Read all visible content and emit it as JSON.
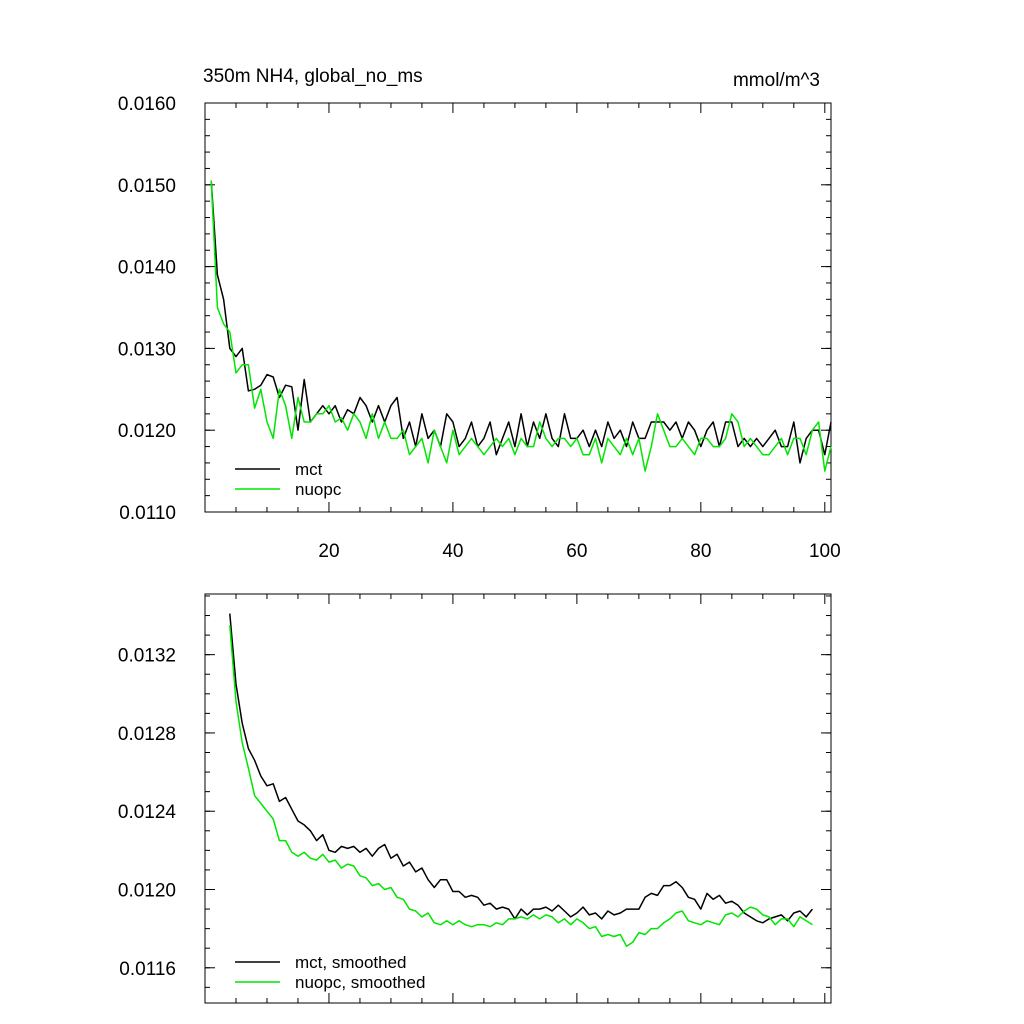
{
  "colors": {
    "mct": "#000000",
    "nuopc": "#00e600",
    "axis": "#000000",
    "background": "#ffffff"
  },
  "chart_data": [
    {
      "type": "line",
      "title_left": "350m NH4, global_no_ms",
      "title_right": "mmol/m^3",
      "xlabel": "",
      "ylabel": "",
      "xlim": [
        0,
        101
      ],
      "ylim": [
        0.011,
        0.016
      ],
      "x_ticks": [
        20,
        40,
        60,
        80,
        100
      ],
      "x_tick_labels": [
        "20",
        "40",
        "60",
        "80",
        "100"
      ],
      "y_ticks": [
        0.011,
        0.012,
        0.013,
        0.014,
        0.015,
        0.016
      ],
      "y_tick_labels": [
        "0.0110",
        "0.0120",
        "0.0130",
        "0.0140",
        "0.0150",
        "0.0160"
      ],
      "legend_position": "bottom-left",
      "grid": false,
      "x": [
        1,
        2,
        3,
        4,
        5,
        6,
        7,
        8,
        9,
        10,
        11,
        12,
        13,
        14,
        15,
        16,
        17,
        18,
        19,
        20,
        21,
        22,
        23,
        24,
        25,
        26,
        27,
        28,
        29,
        30,
        31,
        32,
        33,
        34,
        35,
        36,
        37,
        38,
        39,
        40,
        41,
        42,
        43,
        44,
        45,
        46,
        47,
        48,
        49,
        50,
        51,
        52,
        53,
        54,
        55,
        56,
        57,
        58,
        59,
        60,
        61,
        62,
        63,
        64,
        65,
        66,
        67,
        68,
        69,
        70,
        71,
        72,
        73,
        74,
        75,
        76,
        77,
        78,
        79,
        80,
        81,
        82,
        83,
        84,
        85,
        86,
        87,
        88,
        89,
        90,
        91,
        92,
        93,
        94,
        95,
        96,
        97,
        98,
        99,
        100,
        101
      ],
      "series": [
        {
          "name": "mct",
          "color": "#000000",
          "values": [
            0.01505,
            0.0139,
            0.0136,
            0.013,
            0.0129,
            0.013,
            0.01248,
            0.0125,
            0.01255,
            0.01268,
            0.01265,
            0.0124,
            0.01255,
            0.01253,
            0.012,
            0.01262,
            0.0121,
            0.0122,
            0.0123,
            0.0122,
            0.0123,
            0.0121,
            0.01225,
            0.0122,
            0.0124,
            0.0123,
            0.0121,
            0.0123,
            0.0121,
            0.0123,
            0.0124,
            0.0119,
            0.0121,
            0.0118,
            0.0122,
            0.0119,
            0.012,
            0.0118,
            0.0122,
            0.0121,
            0.0118,
            0.0119,
            0.0121,
            0.0118,
            0.0119,
            0.0121,
            0.0117,
            0.0119,
            0.0121,
            0.0118,
            0.0122,
            0.0118,
            0.0121,
            0.0119,
            0.0122,
            0.0119,
            0.0118,
            0.0122,
            0.0119,
            0.0119,
            0.012,
            0.0118,
            0.012,
            0.0118,
            0.0121,
            0.0119,
            0.012,
            0.0118,
            0.0121,
            0.0119,
            0.0119,
            0.0121,
            0.0121,
            0.0121,
            0.012,
            0.0121,
            0.0119,
            0.0121,
            0.012,
            0.0118,
            0.012,
            0.0121,
            0.0118,
            0.0121,
            0.0121,
            0.0118,
            0.0119,
            0.0118,
            0.0119,
            0.0118,
            0.0119,
            0.012,
            0.0118,
            0.0118,
            0.0121,
            0.0116,
            0.0119,
            0.012,
            0.012,
            0.0117,
            0.0121
          ]
        },
        {
          "name": "nuopc",
          "color": "#00e600",
          "values": [
            0.01505,
            0.0135,
            0.0133,
            0.0132,
            0.0127,
            0.0128,
            0.0128,
            0.01227,
            0.0125,
            0.0121,
            0.0119,
            0.0125,
            0.0123,
            0.0119,
            0.0124,
            0.0121,
            0.0121,
            0.0122,
            0.0122,
            0.0123,
            0.0121,
            0.01215,
            0.012,
            0.0122,
            0.0121,
            0.0119,
            0.0122,
            0.0119,
            0.0121,
            0.0119,
            0.0119,
            0.012,
            0.0117,
            0.0118,
            0.0119,
            0.0116,
            0.012,
            0.0118,
            0.0116,
            0.012,
            0.0117,
            0.0118,
            0.0119,
            0.0118,
            0.0117,
            0.0118,
            0.0119,
            0.0118,
            0.0119,
            0.0117,
            0.0119,
            0.0118,
            0.0118,
            0.0121,
            0.0119,
            0.0118,
            0.0119,
            0.0119,
            0.0118,
            0.0119,
            0.0117,
            0.0117,
            0.0119,
            0.0116,
            0.0119,
            0.0118,
            0.0117,
            0.0119,
            0.0117,
            0.0119,
            0.0115,
            0.0118,
            0.0122,
            0.012,
            0.0118,
            0.0118,
            0.0119,
            0.0118,
            0.0117,
            0.0119,
            0.0119,
            0.0118,
            0.0118,
            0.0119,
            0.0122,
            0.0121,
            0.0118,
            0.0119,
            0.0118,
            0.0117,
            0.0117,
            0.0118,
            0.0119,
            0.0117,
            0.0119,
            0.0119,
            0.0117,
            0.012,
            0.0121,
            0.0115,
            0.0118
          ]
        }
      ]
    },
    {
      "type": "line",
      "xlabel": "",
      "ylabel": "",
      "xlim": [
        0,
        101
      ],
      "ylim": [
        0.01142,
        0.01351
      ],
      "x_ticks": [
        20,
        40,
        60,
        80,
        100
      ],
      "y_ticks": [
        0.0116,
        0.012,
        0.0124,
        0.0128,
        0.0132
      ],
      "y_tick_labels": [
        "0.0116",
        "0.0120",
        "0.0124",
        "0.0128",
        "0.0132"
      ],
      "legend_position": "bottom-left",
      "grid": false,
      "x": [
        4,
        5,
        6,
        7,
        8,
        9,
        10,
        11,
        12,
        13,
        14,
        15,
        16,
        17,
        18,
        19,
        20,
        21,
        22,
        23,
        24,
        25,
        26,
        27,
        28,
        29,
        30,
        31,
        32,
        33,
        34,
        35,
        36,
        37,
        38,
        39,
        40,
        41,
        42,
        43,
        44,
        45,
        46,
        47,
        48,
        49,
        50,
        51,
        52,
        53,
        54,
        55,
        56,
        57,
        58,
        59,
        60,
        61,
        62,
        63,
        64,
        65,
        66,
        67,
        68,
        69,
        70,
        71,
        72,
        73,
        74,
        75,
        76,
        77,
        78,
        79,
        80,
        81,
        82,
        83,
        84,
        85,
        86,
        87,
        88,
        89,
        90,
        91,
        92,
        93,
        94,
        95,
        96,
        97,
        98
      ],
      "series": [
        {
          "name": "mct, smoothed",
          "color": "#000000",
          "values": [
            0.01341,
            0.01305,
            0.01285,
            0.01272,
            0.01266,
            0.01258,
            0.01253,
            0.01254,
            0.01245,
            0.01247,
            0.01241,
            0.01235,
            0.01233,
            0.0123,
            0.01225,
            0.01228,
            0.0122,
            0.01219,
            0.01222,
            0.01221,
            0.01222,
            0.01219,
            0.01221,
            0.01217,
            0.01221,
            0.01223,
            0.01216,
            0.01218,
            0.01212,
            0.01214,
            0.01209,
            0.01211,
            0.01205,
            0.01201,
            0.01205,
            0.01205,
            0.01199,
            0.01199,
            0.01196,
            0.01197,
            0.01196,
            0.01192,
            0.01193,
            0.0119,
            0.01191,
            0.0119,
            0.01185,
            0.0119,
            0.01187,
            0.0119,
            0.0119,
            0.01191,
            0.01189,
            0.01192,
            0.01189,
            0.01186,
            0.01188,
            0.01191,
            0.01187,
            0.01188,
            0.01185,
            0.01189,
            0.01187,
            0.01188,
            0.0119,
            0.0119,
            0.0119,
            0.01196,
            0.01198,
            0.01197,
            0.01202,
            0.01202,
            0.01204,
            0.01201,
            0.01196,
            0.01195,
            0.0119,
            0.01198,
            0.01195,
            0.01197,
            0.01193,
            0.01194,
            0.01192,
            0.01188,
            0.01186,
            0.01184,
            0.01183,
            0.01185,
            0.01186,
            0.01187,
            0.01184,
            0.01188,
            0.01189,
            0.01186,
            0.0119
          ]
        },
        {
          "name": "nuopc, smoothed",
          "color": "#00e600",
          "values": [
            0.01335,
            0.01296,
            0.01275,
            0.01262,
            0.01248,
            0.01244,
            0.0124,
            0.01236,
            0.01225,
            0.01225,
            0.01219,
            0.01217,
            0.01219,
            0.01216,
            0.01215,
            0.01218,
            0.01214,
            0.01215,
            0.01211,
            0.01213,
            0.01212,
            0.01207,
            0.01206,
            0.01202,
            0.01203,
            0.012,
            0.01201,
            0.01196,
            0.01195,
            0.0119,
            0.01189,
            0.01186,
            0.01188,
            0.01183,
            0.01182,
            0.01184,
            0.01182,
            0.01184,
            0.01182,
            0.01181,
            0.01182,
            0.01182,
            0.01181,
            0.01183,
            0.01182,
            0.01185,
            0.01185,
            0.01186,
            0.01185,
            0.01187,
            0.01185,
            0.01187,
            0.01186,
            0.01183,
            0.01185,
            0.01182,
            0.01185,
            0.01183,
            0.0118,
            0.01181,
            0.01176,
            0.01177,
            0.01176,
            0.01177,
            0.01171,
            0.01173,
            0.01178,
            0.01177,
            0.0118,
            0.0118,
            0.01183,
            0.01185,
            0.01188,
            0.01189,
            0.01184,
            0.01183,
            0.01182,
            0.01184,
            0.01183,
            0.01182,
            0.01187,
            0.01188,
            0.01186,
            0.01189,
            0.01191,
            0.0119,
            0.01187,
            0.01186,
            0.01182,
            0.01185,
            0.01185,
            0.01181,
            0.01186,
            0.01184,
            0.01182
          ]
        }
      ]
    }
  ]
}
